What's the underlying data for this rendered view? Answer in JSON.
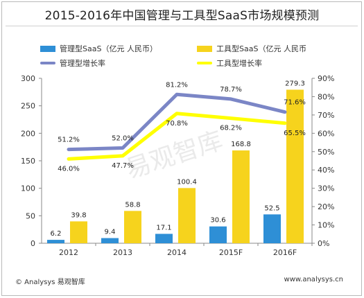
{
  "title": "2015-2016年中国管理与工具型SaaS市场规模预测",
  "legend": [
    {
      "label": "管理型SaaS（亿元 人民币）",
      "kind": "bar",
      "color": "#2e8fd6"
    },
    {
      "label": "工具型SaaS（亿元 人民币",
      "kind": "bar",
      "color": "#f6d31d"
    },
    {
      "label": "管理型增长率",
      "kind": "line",
      "color": "#7b86c6"
    },
    {
      "label": "工具型增长率",
      "kind": "line",
      "color": "#ffff00"
    }
  ],
  "watermark": "易观智库",
  "footer": {
    "left": "© Analysys 易观智库",
    "right": "www.analysys.cn"
  },
  "chart_data": {
    "type": "bar",
    "categories": [
      "2012",
      "2013",
      "2014",
      "2015F",
      "2016F"
    ],
    "series": [
      {
        "name": "管理型SaaS（亿元 人民币）",
        "type": "bar",
        "axis": "left",
        "values": [
          6.2,
          9.4,
          17.1,
          30.6,
          52.5
        ],
        "labels": [
          "6.2",
          "9.4",
          "17.1",
          "30.6",
          "52.5"
        ],
        "color": "#2e8fd6"
      },
      {
        "name": "工具型SaaS（亿元 人民币",
        "type": "bar",
        "axis": "left",
        "values": [
          39.8,
          58.8,
          100.4,
          168.8,
          279.3
        ],
        "labels": [
          "39.8",
          "58.8",
          "100.4",
          "168.8",
          "279.3"
        ],
        "color": "#f6d31d"
      },
      {
        "name": "管理型增长率",
        "type": "line",
        "axis": "right",
        "values": [
          51.2,
          52.0,
          81.2,
          78.7,
          71.6
        ],
        "labels": [
          "51.2%",
          "52.0%",
          "81.2%",
          "78.7%",
          "71.6%"
        ],
        "color": "#7b86c6"
      },
      {
        "name": "工具型增长率",
        "type": "line",
        "axis": "right",
        "values": [
          46.0,
          47.7,
          70.8,
          68.2,
          65.5
        ],
        "labels": [
          "46.0%",
          "47.7%",
          "70.8%",
          "68.2%",
          "65.5%"
        ],
        "color": "#ffff00"
      }
    ],
    "left_axis": {
      "min": 0,
      "max": 300,
      "ticks": [
        "0",
        "50",
        "100",
        "150",
        "200",
        "250",
        "300"
      ]
    },
    "right_axis": {
      "min": 0,
      "max": 90,
      "ticks": [
        "0%",
        "10%",
        "20%",
        "30%",
        "40%",
        "50%",
        "60%",
        "70%",
        "80%",
        "90%"
      ]
    },
    "grid": false,
    "legend_position": "top"
  }
}
